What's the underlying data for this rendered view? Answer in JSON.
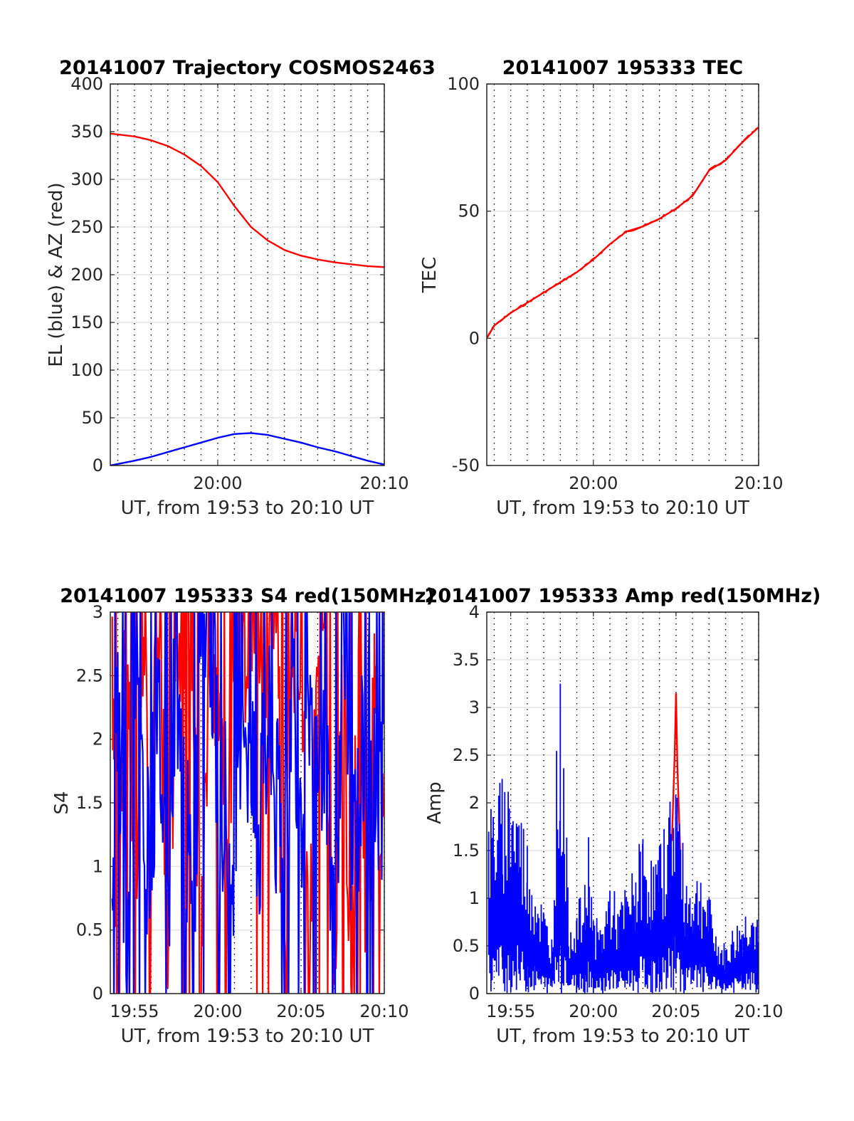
{
  "chart_data": [
    {
      "type": "line",
      "title": "20141007 Trajectory COSMOS2463",
      "xlabel": "UT, from 19:53 to 20:10 UT",
      "ylabel": "EL (blue) & AZ (red)",
      "xlim": [
        "19:53:33",
        "20:10:00"
      ],
      "ylim": [
        0,
        400
      ],
      "yticks": [
        "0",
        "50",
        "100",
        "150",
        "200",
        "250",
        "300",
        "350",
        "400"
      ],
      "xticks": [
        {
          "t": "20:00",
          "label": "20:00"
        },
        {
          "t": "20:10",
          "label": "20:10"
        }
      ],
      "grid": "dotted vertical every 1 min, light horizontal",
      "series": [
        {
          "color": "#ff0000",
          "x": [
            "19:53:33",
            "19:55:00",
            "19:56:00",
            "19:57:00",
            "19:58:00",
            "19:59:00",
            "20:00:00",
            "20:01:00",
            "20:02:00",
            "20:03:00",
            "20:04:00",
            "20:05:00",
            "20:06:00",
            "20:07:00",
            "20:08:00",
            "20:09:00",
            "20:10:00"
          ],
          "values": [
            348,
            345,
            341,
            335,
            326,
            314,
            297,
            272,
            250,
            236,
            226,
            220,
            216,
            213,
            211,
            209,
            208
          ]
        },
        {
          "color": "#0000ff",
          "x": [
            "19:53:33",
            "19:55:00",
            "19:56:00",
            "19:57:00",
            "19:58:00",
            "19:59:00",
            "20:00:00",
            "20:01:00",
            "20:02:00",
            "20:03:00",
            "20:04:00",
            "20:05:00",
            "20:06:00",
            "20:07:00",
            "20:08:00",
            "20:09:00",
            "20:10:00"
          ],
          "values": [
            0,
            5,
            9,
            14,
            19,
            24,
            29,
            33,
            34,
            32,
            28,
            24,
            19,
            15,
            10,
            5,
            1
          ]
        }
      ]
    },
    {
      "type": "line",
      "title": "20141007 195333 TEC",
      "xlabel": "UT, from 19:53 to 20:10 UT",
      "ylabel": "TEC",
      "xlim": [
        "19:53:33",
        "20:10:00"
      ],
      "ylim": [
        -50,
        100
      ],
      "yticks": [
        "-50",
        "0",
        "50",
        "100"
      ],
      "xticks": [
        {
          "t": "20:00",
          "label": "20:00"
        },
        {
          "t": "20:10",
          "label": "20:10"
        }
      ],
      "grid": "dotted vertical every 1 min, light horizontal",
      "series": [
        {
          "color": "#ff0000",
          "x": [
            "19:53:33",
            "19:54:00",
            "19:55:00",
            "19:56:00",
            "19:57:00",
            "19:58:00",
            "19:59:00",
            "20:00:00",
            "20:01:00",
            "20:02:00",
            "20:03:00",
            "20:04:00",
            "20:05:00",
            "20:06:00",
            "20:07:00",
            "20:08:00",
            "20:09:00",
            "20:10:00"
          ],
          "values": [
            0,
            5,
            10,
            14,
            18,
            22,
            26,
            31,
            37,
            42,
            44,
            47,
            51,
            56,
            66,
            70,
            77,
            83
          ]
        }
      ]
    },
    {
      "type": "line",
      "title": "20141007 195333 S4 red(150MHz)",
      "xlabel": "UT, from 19:53 to 20:10 UT",
      "ylabel": "S4",
      "xlim": [
        "19:53:33",
        "20:10:00"
      ],
      "ylim": [
        0,
        3
      ],
      "yticks": [
        "0",
        "0.5",
        "1",
        "1.5",
        "2",
        "2.5",
        "3"
      ],
      "xticks": [
        {
          "t": "19:55",
          "label": "19:55"
        },
        {
          "t": "20:00",
          "label": "20:00"
        },
        {
          "t": "20:05",
          "label": "20:05"
        },
        {
          "t": "20:10",
          "label": "20:10"
        }
      ],
      "grid": "dotted vertical every 1 min, light horizontal",
      "series": [
        {
          "color": "#ff0000",
          "x": [
            "19:53:40",
            "19:54:00",
            "19:54:30",
            "19:55:00",
            "19:55:30",
            "19:56:00",
            "19:56:30",
            "19:57:00",
            "19:57:30",
            "19:58:00",
            "19:58:30",
            "19:59:00",
            "19:59:30",
            "20:00:00",
            "20:00:30",
            "20:01:00",
            "20:01:30",
            "20:02:00",
            "20:02:30",
            "20:03:00",
            "20:03:30",
            "20:04:00",
            "20:04:30",
            "20:05:00",
            "20:05:30",
            "20:06:00",
            "20:06:30",
            "20:07:00",
            "20:07:30",
            "20:08:00",
            "20:08:30",
            "20:09:00",
            "20:09:30",
            "20:10:00"
          ],
          "values": [
            3,
            0,
            3,
            0.5,
            3,
            1.3,
            3,
            0,
            3,
            2.5,
            3,
            0,
            3,
            2.6,
            0.8,
            3,
            2.5,
            3,
            3,
            2.8,
            3,
            0,
            3,
            3,
            0,
            3,
            2.9,
            0,
            3,
            0,
            3,
            0,
            3,
            0.6
          ]
        },
        {
          "color": "#0000ff",
          "x": [
            "19:53:40",
            "19:54:00",
            "19:54:30",
            "19:55:00",
            "19:55:30",
            "19:56:00",
            "19:56:30",
            "19:57:00",
            "19:57:30",
            "19:58:00",
            "19:58:30",
            "19:59:00",
            "19:59:30",
            "20:00:00",
            "20:00:30",
            "20:01:00",
            "20:01:30",
            "20:02:00",
            "20:02:30",
            "20:03:00",
            "20:03:30",
            "20:04:00",
            "20:04:30",
            "20:05:00",
            "20:05:30",
            "20:06:00",
            "20:06:30",
            "20:07:00",
            "20:07:30",
            "20:08:00",
            "20:08:30",
            "20:09:00",
            "20:09:30",
            "20:10:00"
          ],
          "values": [
            0.6,
            2.3,
            0.7,
            2.9,
            1.2,
            1.3,
            2.1,
            0.5,
            2.8,
            1.5,
            0.4,
            3,
            2.9,
            1.9,
            1.4,
            0,
            2.5,
            1.6,
            1.2,
            2.2,
            1.4,
            1.3,
            2.5,
            1.6,
            1.8,
            1.5,
            2.1,
            0.1,
            3,
            0.8,
            1.5,
            2.5,
            1.2,
            1.7
          ]
        }
      ]
    },
    {
      "type": "line",
      "title": "20141007 195333 Amp red(150MHz)",
      "xlabel": "UT, from 19:53 to 20:10 UT",
      "ylabel": "Amp",
      "xlim": [
        "19:53:33",
        "20:10:00"
      ],
      "ylim": [
        0,
        4
      ],
      "yticks": [
        "0",
        "0.5",
        "1",
        "1.5",
        "2",
        "2.5",
        "3",
        "3.5",
        "4"
      ],
      "xticks": [
        {
          "t": "19:55",
          "label": "19:55"
        },
        {
          "t": "20:00",
          "label": "20:00"
        },
        {
          "t": "20:05",
          "label": "20:05"
        },
        {
          "t": "20:10",
          "label": "20:10"
        }
      ],
      "grid": "dotted vertical every 1 min, light horizontal",
      "series": [
        {
          "color": "#ff0000",
          "x": [
            "20:04:45",
            "20:04:55",
            "20:05:00",
            "20:05:05",
            "20:05:15"
          ],
          "values": [
            1.6,
            2.5,
            3.15,
            2.4,
            1.5
          ]
        },
        {
          "color": "#0000ff",
          "x": [
            "19:53:40",
            "19:54:00",
            "19:54:30",
            "19:55:00",
            "19:55:30",
            "19:56:00",
            "19:56:30",
            "19:57:00",
            "19:57:30",
            "19:57:50",
            "19:58:00",
            "19:58:15",
            "19:58:30",
            "19:59:00",
            "19:59:30",
            "19:59:45",
            "20:00:00",
            "20:00:30",
            "20:01:00",
            "20:01:30",
            "20:02:00",
            "20:02:30",
            "20:03:00",
            "20:03:30",
            "20:04:00",
            "20:04:30",
            "20:05:00",
            "20:05:30",
            "20:06:00",
            "20:06:30",
            "20:07:00",
            "20:07:30",
            "20:08:00",
            "20:08:30",
            "20:09:00",
            "20:09:30",
            "20:10:00"
          ],
          "values": [
            1.8,
            2.1,
            2.2,
            2.3,
            2.0,
            1.6,
            1.2,
            0.9,
            0.6,
            2.9,
            3.2,
            2.5,
            0.8,
            0.9,
            1.1,
            1.8,
            0.8,
            0.7,
            1.2,
            0.9,
            1.1,
            1.3,
            1.7,
            1.4,
            1.5,
            1.9,
            2.5,
            1.3,
            1.2,
            1.3,
            1.0,
            0.6,
            0.5,
            0.7,
            0.8,
            1.0,
            0.7
          ]
        }
      ]
    }
  ]
}
